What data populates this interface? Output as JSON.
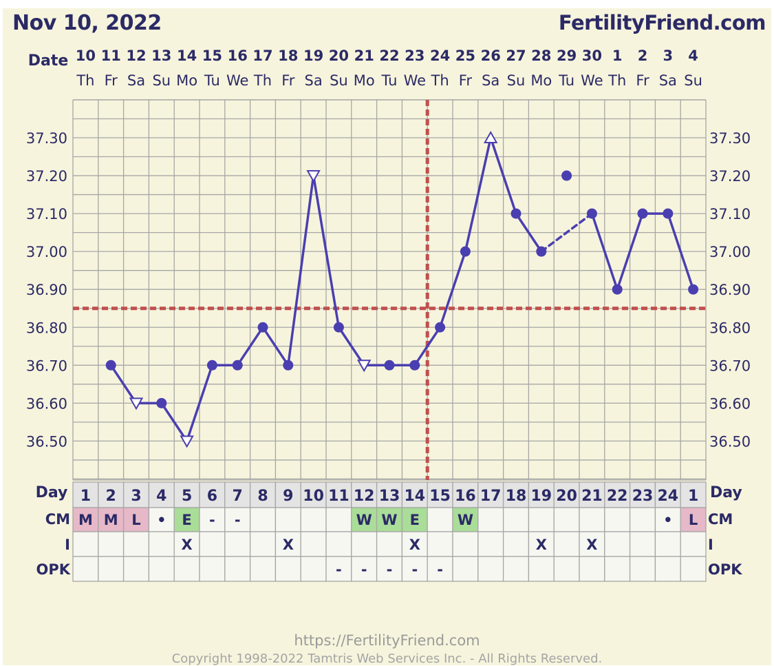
{
  "header": {
    "date_title": "Nov 10, 2022",
    "site_title": "FertilityFriend.com"
  },
  "row_labels": {
    "date": "Date",
    "day": "Day",
    "cm": "CM",
    "intercourse": "I",
    "opk": "OPK"
  },
  "footer": {
    "url": "https://FertilityFriend.com",
    "copyright": "Copyright 1998-2022 Tamtris Web Services Inc. - All Rights Reserved."
  },
  "colors": {
    "background": "#f7f4dd",
    "grid": "#a6a6a6",
    "line": "#4a3fb0",
    "coverline": "#c0504d",
    "text": "#2b2a66",
    "cm_pink": "#e6b8c8",
    "cm_green": "#a9dd98",
    "day_cell": "#e4e4e4",
    "empty_cell": "#f7f7f2"
  },
  "chart_data": {
    "type": "line",
    "title": "",
    "xlabel": "Date",
    "ylabel": "",
    "ylim": [
      36.4,
      37.4
    ],
    "y_ticks": [
      "36.50",
      "36.60",
      "36.70",
      "36.80",
      "36.90",
      "37.00",
      "37.10",
      "37.20",
      "37.30"
    ],
    "dates": [
      "10",
      "11",
      "12",
      "13",
      "14",
      "15",
      "16",
      "17",
      "18",
      "19",
      "20",
      "21",
      "22",
      "23",
      "24",
      "25",
      "26",
      "27",
      "28",
      "29",
      "30",
      "1",
      "2",
      "3",
      "4"
    ],
    "weekdays": [
      "Th",
      "Fr",
      "Sa",
      "Su",
      "Mo",
      "Tu",
      "We",
      "Th",
      "Fr",
      "Sa",
      "Su",
      "Mo",
      "Tu",
      "We",
      "Th",
      "Fr",
      "Sa",
      "Su",
      "Mo",
      "Tu",
      "We",
      "Th",
      "Fr",
      "Sa",
      "Su"
    ],
    "cycle_days": [
      "1",
      "2",
      "3",
      "4",
      "5",
      "6",
      "7",
      "8",
      "9",
      "10",
      "11",
      "12",
      "13",
      "14",
      "15",
      "16",
      "17",
      "18",
      "19",
      "20",
      "21",
      "22",
      "23",
      "24",
      "1"
    ],
    "temperatures": [
      null,
      36.7,
      36.6,
      36.6,
      36.5,
      36.7,
      36.7,
      36.8,
      36.7,
      37.2,
      36.8,
      36.7,
      36.7,
      36.7,
      36.8,
      37.0,
      37.3,
      37.1,
      37.0,
      37.2,
      37.1,
      36.9,
      37.1,
      37.1,
      36.9
    ],
    "markers": [
      "",
      "dot",
      "tri-down",
      "dot",
      "tri-down",
      "dot",
      "dot",
      "dot",
      "dot",
      "tri-down",
      "dot",
      "tri-down",
      "dot",
      "dot",
      "dot",
      "dot",
      "tri-up",
      "dot",
      "dot",
      "dot",
      "dot",
      "dot",
      "dot",
      "dot",
      "dot"
    ],
    "excluded_points": [
      19
    ],
    "coverline": 36.85,
    "ovulation_day_index": 14,
    "cm": [
      "M",
      "M",
      "L",
      "•",
      "E",
      "-",
      "-",
      "",
      "",
      "",
      "",
      "W",
      "W",
      "E",
      "",
      "W",
      "",
      "",
      "",
      "",
      "",
      "",
      "",
      "•",
      "L"
    ],
    "cm_colors": [
      "pink",
      "pink",
      "pink",
      "",
      "green",
      "",
      "",
      "",
      "",
      "",
      "",
      "green",
      "green",
      "green",
      "",
      "green",
      "",
      "",
      "",
      "",
      "",
      "",
      "",
      "",
      "pink"
    ],
    "intercourse": [
      "",
      "",
      "",
      "",
      "X",
      "",
      "",
      "",
      "X",
      "",
      "",
      "",
      "",
      "X",
      "",
      "",
      "",
      "",
      "X",
      "",
      "X",
      "",
      "",
      "",
      ""
    ],
    "opk": [
      "",
      "",
      "",
      "",
      "",
      "",
      "",
      "",
      "",
      "",
      "-",
      "-",
      "-",
      "-",
      "-",
      "",
      "",
      "",
      "",
      "",
      "",
      "",
      "",
      "",
      ""
    ]
  }
}
